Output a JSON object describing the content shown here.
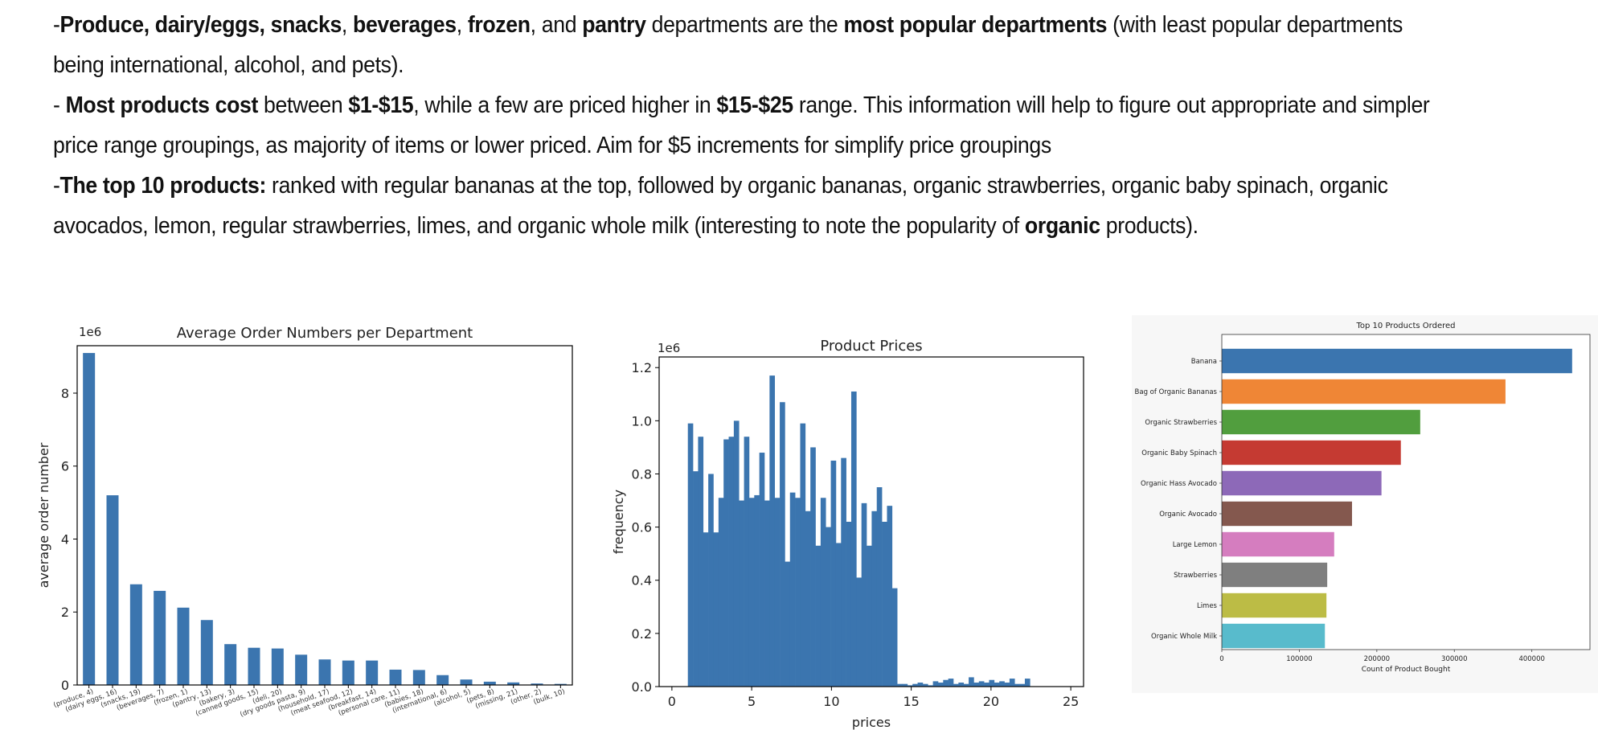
{
  "notes": {
    "p1": [
      "-",
      {
        "b": "Produce, dairy/eggs, snacks"
      },
      ", ",
      {
        "b": "beverages"
      },
      ", ",
      {
        "b": "frozen"
      },
      ", and ",
      {
        "b": "pantry"
      },
      " departments are the ",
      {
        "b": "most popular departments"
      },
      " (with least popular departments being international, alcohol, and pets)."
    ],
    "p2": [
      "- ",
      {
        "b": "Most products cost"
      },
      " between ",
      {
        "b": "$1-$15"
      },
      ", while a few are priced higher in ",
      {
        "b": "$15-$25"
      },
      " range.  This information will help to figure out appropriate and simpler price range groupings, as majority of items or lower priced.   Aim for $5 increments for simplify price groupings"
    ],
    "p3": [
      "-",
      {
        "b": "The top 10 products:"
      },
      " ranked with regular bananas at the top, followed by organic bananas, organic strawberries, organic baby spinach, organic avocados, lemon, regular strawberries, limes, and organic whole milk (interesting to note the popularity of ",
      {
        "b": "organic"
      },
      " products)."
    ]
  },
  "chart_data": [
    {
      "type": "bar",
      "title": "Average Order Numbers per Department",
      "xlabel": "",
      "ylabel": "average order number",
      "scale_label": "1e6",
      "ylim": [
        0,
        9.3
      ],
      "yticks": [
        0,
        2,
        4,
        6,
        8
      ],
      "color": "#3b75af",
      "categories": [
        "(produce, 4)",
        "(dairy eggs, 16)",
        "(snacks, 19)",
        "(beverages, 7)",
        "(frozen, 1)",
        "(pantry, 13)",
        "(bakery, 3)",
        "(canned goods, 15)",
        "(deli, 20)",
        "(dry goods pasta, 9)",
        "(household, 17)",
        "(meat seafood, 12)",
        "(breakfast, 14)",
        "(personal care, 11)",
        "(babies, 18)",
        "(international, 6)",
        "(alcohol, 5)",
        "(pets, 8)",
        "(missing, 21)",
        "(other, 2)",
        "(bulk, 10)"
      ],
      "values": [
        9.1,
        5.2,
        2.76,
        2.58,
        2.12,
        1.78,
        1.12,
        1.02,
        1.0,
        0.83,
        0.7,
        0.67,
        0.67,
        0.42,
        0.41,
        0.27,
        0.15,
        0.09,
        0.07,
        0.04,
        0.03
      ]
    },
    {
      "type": "bar",
      "subtype": "histogram",
      "title": "Product Prices",
      "xlabel": "prices",
      "ylabel": "frequency",
      "scale_label": "1e6",
      "xlim": [
        -0.8,
        25.8
      ],
      "ylim": [
        0,
        1.24
      ],
      "xticks": [
        0,
        5,
        10,
        15,
        20,
        25
      ],
      "yticks": [
        0.0,
        0.2,
        0.4,
        0.6,
        0.8,
        1.0,
        1.2
      ],
      "color": "#3b75af",
      "bin_start": 1.0,
      "bin_width": 0.32,
      "values": [
        0.99,
        0.81,
        0.94,
        0.58,
        0.8,
        0.58,
        0.71,
        0.93,
        0.94,
        1.0,
        0.7,
        0.94,
        0.71,
        0.72,
        0.88,
        0.7,
        1.17,
        0.71,
        1.07,
        0.47,
        0.73,
        0.71,
        0.99,
        0.66,
        0.9,
        0.53,
        0.71,
        0.6,
        0.85,
        0.54,
        0.86,
        0.62,
        1.11,
        0.41,
        0.69,
        0.53,
        0.66,
        0.75,
        0.62,
        0.68,
        0.37,
        0.01,
        0.01,
        0.005,
        0.01,
        0.015,
        0.01,
        0.005,
        0.02,
        0.015,
        0.025,
        0.03,
        0.01,
        0.015,
        0.01,
        0.035,
        0.015,
        0.02,
        0.015,
        0.025,
        0.015,
        0.02,
        0.015,
        0.03,
        0.01,
        0.01,
        0.03
      ]
    },
    {
      "type": "bar",
      "orientation": "horizontal",
      "title": "Top 10 Products Ordered",
      "xlabel": "Count of Product Bought",
      "ylabel": "",
      "xlim": [
        0,
        475000
      ],
      "xticks": [
        0,
        100000,
        200000,
        300000,
        400000
      ],
      "categories": [
        "Banana",
        "Bag of Organic Bananas",
        "Organic Strawberries",
        "Organic Baby Spinach",
        "Organic Hass Avocado",
        "Organic Avocado",
        "Large Lemon",
        "Strawberries",
        "Limes",
        "Organic Whole Milk"
      ],
      "values": [
        452000,
        366000,
        256000,
        231000,
        206000,
        168000,
        145000,
        136000,
        135000,
        133000
      ],
      "colors": [
        "#3b75af",
        "#ef8636",
        "#519e3e",
        "#c53a32",
        "#8d69b8",
        "#84584e",
        "#d57dbf",
        "#7f7f7f",
        "#bcbc45",
        "#58bbcc"
      ]
    }
  ]
}
